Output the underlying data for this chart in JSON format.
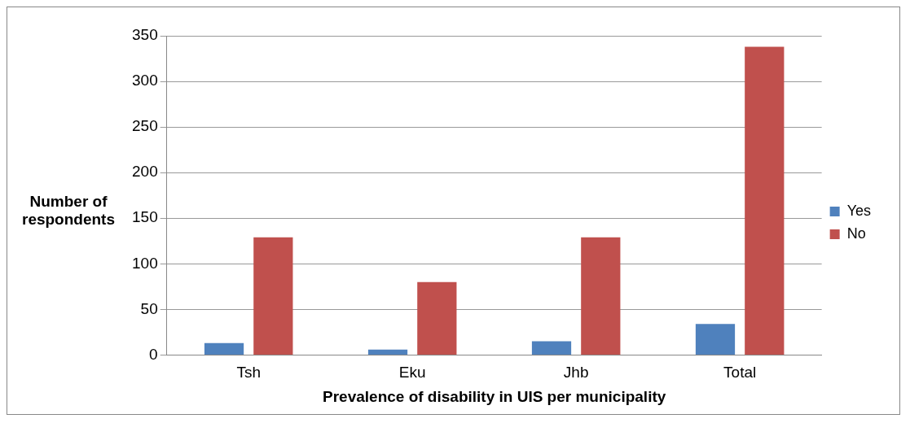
{
  "chart_data": {
    "type": "bar",
    "xlabel": "Prevalence of disability in UIS per municipality",
    "ylabel": "Number of respondents",
    "categories": [
      "Tsh",
      "Eku",
      "Jhb",
      "Total"
    ],
    "series": [
      {
        "name": "Yes",
        "color": "#4f81bd",
        "values": [
          13,
          6,
          15,
          34
        ]
      },
      {
        "name": "No",
        "color": "#c0504d",
        "values": [
          129,
          80,
          129,
          338
        ]
      }
    ],
    "ylim": [
      0,
      350
    ],
    "yticks": [
      0,
      50,
      100,
      150,
      200,
      250,
      300,
      350
    ],
    "grid": "y",
    "legend": "right"
  }
}
